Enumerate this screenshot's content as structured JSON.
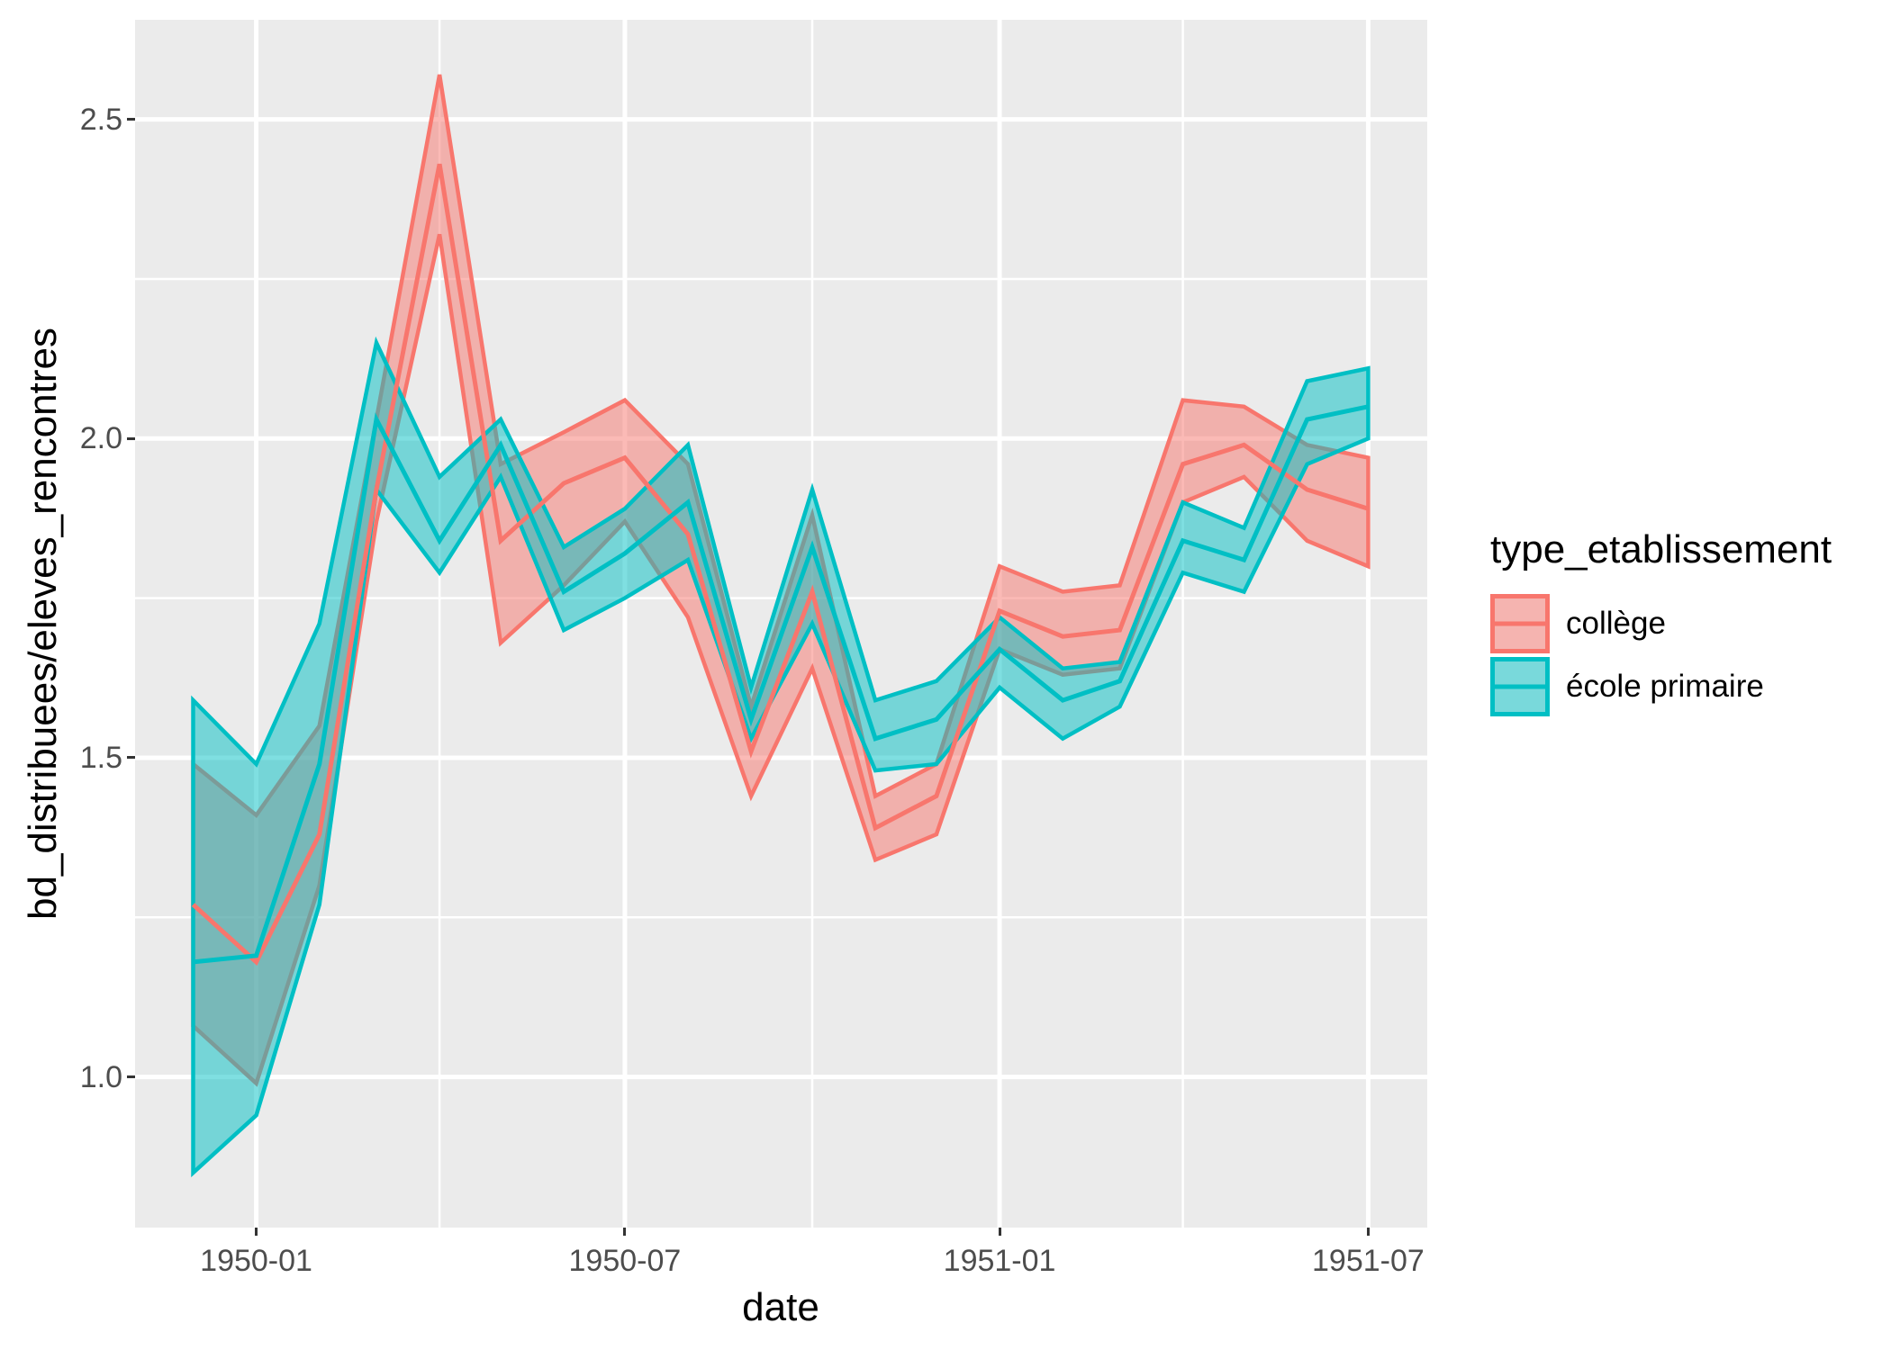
{
  "figure": {
    "background": "#FFFFFF",
    "panel_background": "#EBEBEB",
    "grid_color": "#FFFFFF",
    "tick_mark_color": "#333333",
    "axis_text_color": "#4D4D4D",
    "title_text_color": "#000000"
  },
  "chart_data": {
    "type": "line",
    "title": "",
    "xlabel": "date",
    "ylabel": "bd_distribuees/eleves_rencontres",
    "legend_title": "type_etablissement",
    "legend_position": "right",
    "grid": true,
    "ribbon_opacity": 0.5,
    "categories": [
      "1949-12",
      "1950-01",
      "1950-02",
      "1950-03",
      "1950-04",
      "1950-05",
      "1950-06",
      "1950-07",
      "1950-08",
      "1950-09",
      "1950-10",
      "1950-11",
      "1950-12",
      "1951-01",
      "1951-02",
      "1951-03",
      "1951-04",
      "1951-05",
      "1951-06",
      "1951-07"
    ],
    "x_days": [
      0,
      31,
      62,
      90,
      121,
      151,
      182,
      212,
      243,
      274,
      304,
      335,
      365,
      396,
      427,
      455,
      486,
      516,
      547,
      577
    ],
    "xlim_days": [
      -28.5,
      606
    ],
    "ylim": [
      0.764,
      2.656
    ],
    "x_ticks": [
      {
        "label": "1950-01",
        "day": 31
      },
      {
        "label": "1950-07",
        "day": 212
      },
      {
        "label": "1951-01",
        "day": 396
      },
      {
        "label": "1951-07",
        "day": 577
      }
    ],
    "y_ticks": [
      {
        "label": "2.5",
        "value": 2.5
      },
      {
        "label": "2.0",
        "value": 2.0
      },
      {
        "label": "1.5",
        "value": 1.5
      },
      {
        "label": "1.0",
        "value": 1.0
      }
    ],
    "x_minor_days": [
      121,
      304,
      486
    ],
    "y_minor_values": [
      1.25,
      1.75,
      2.25
    ],
    "series": [
      {
        "name": "collège",
        "color": "#F8766D",
        "values": [
          1.27,
          1.18,
          1.38,
          1.92,
          2.43,
          1.84,
          1.93,
          1.97,
          1.85,
          1.51,
          1.76,
          1.39,
          1.44,
          1.73,
          1.69,
          1.7,
          1.96,
          1.99,
          1.92,
          1.89
        ],
        "lower": [
          1.08,
          0.99,
          1.3,
          1.87,
          2.32,
          1.68,
          1.77,
          1.87,
          1.72,
          1.44,
          1.64,
          1.34,
          1.38,
          1.67,
          1.63,
          1.64,
          1.9,
          1.94,
          1.84,
          1.8
        ],
        "upper": [
          1.49,
          1.41,
          1.55,
          2.03,
          2.57,
          1.96,
          2.01,
          2.06,
          1.96,
          1.58,
          1.88,
          1.44,
          1.49,
          1.8,
          1.76,
          1.77,
          2.06,
          2.05,
          1.99,
          1.97
        ]
      },
      {
        "name": "école primaire",
        "color": "#00BFC4",
        "values": [
          1.18,
          1.19,
          1.49,
          2.03,
          1.84,
          1.99,
          1.76,
          1.82,
          1.9,
          1.56,
          1.83,
          1.53,
          1.56,
          1.67,
          1.59,
          1.62,
          1.84,
          1.81,
          2.03,
          2.05
        ],
        "lower": [
          0.85,
          0.94,
          1.27,
          1.92,
          1.79,
          1.94,
          1.7,
          1.75,
          1.81,
          1.53,
          1.71,
          1.48,
          1.49,
          1.61,
          1.53,
          1.58,
          1.79,
          1.76,
          1.96,
          2.0
        ],
        "upper": [
          1.59,
          1.49,
          1.71,
          2.15,
          1.94,
          2.03,
          1.83,
          1.89,
          1.99,
          1.61,
          1.92,
          1.59,
          1.62,
          1.72,
          1.64,
          1.65,
          1.9,
          1.86,
          2.09,
          2.11
        ]
      }
    ]
  }
}
